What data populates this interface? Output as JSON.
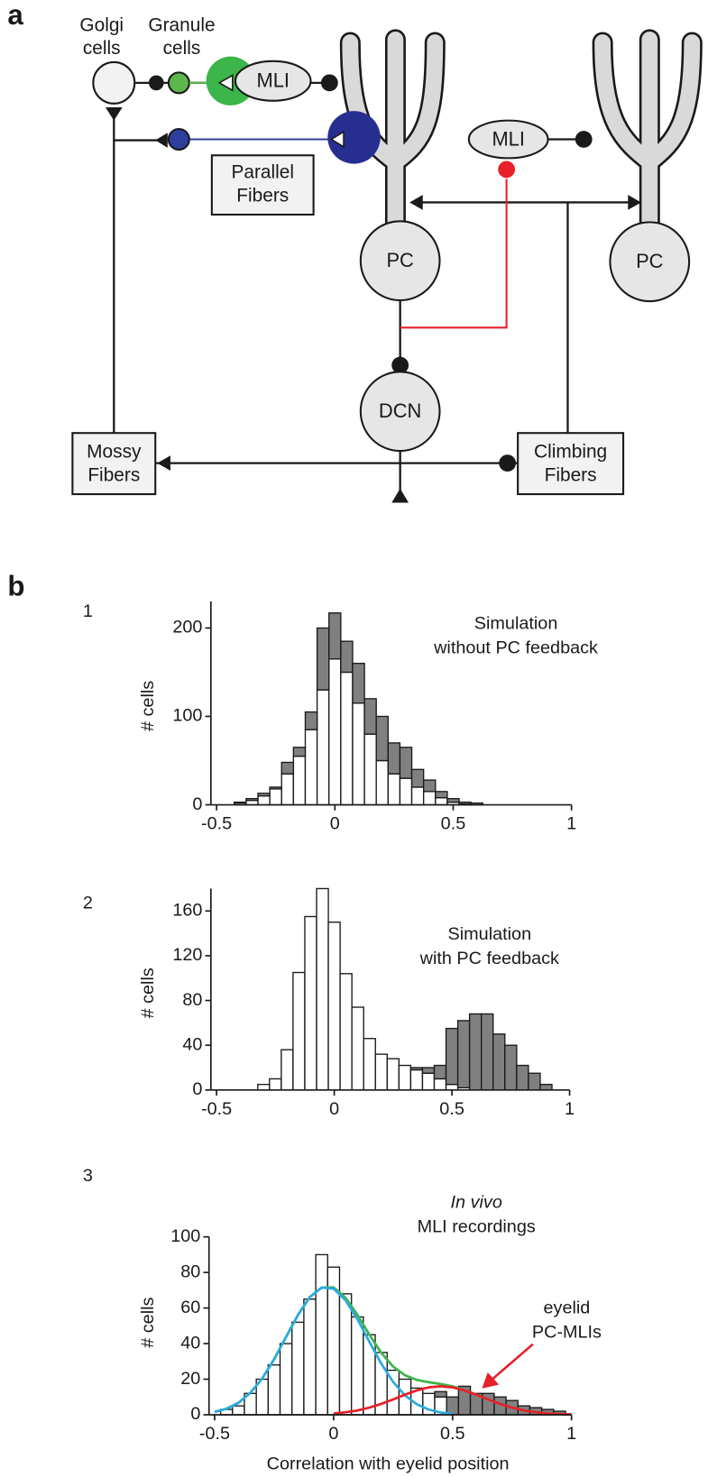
{
  "figure": {
    "panel_a": "a",
    "panel_b": "b"
  },
  "diagram": {
    "labels": {
      "golgi": [
        "Golgi",
        "cells"
      ],
      "granule": [
        "Granule",
        "cells"
      ],
      "mli_1": "MLI",
      "mli_2": "MLI",
      "parallel": [
        "Parallel",
        "Fibers"
      ],
      "pc_1": "PC",
      "pc_2": "PC",
      "dcn": "DCN",
      "mossy": [
        "Mossy",
        "Fibers"
      ],
      "climbing": [
        "Climbing",
        "Fibers"
      ]
    }
  },
  "chart_data": [
    {
      "type": "histogram",
      "panel": "1",
      "ylabel": "# cells",
      "annotation": [
        "Simulation",
        "without PC feedback"
      ],
      "xlim": [
        -0.5,
        1
      ],
      "ylim": [
        0,
        230
      ],
      "xticks": [
        -0.5,
        0,
        0.5,
        1
      ],
      "yticks": [
        0,
        100,
        200
      ],
      "bins": [
        -0.425,
        -0.375,
        -0.325,
        -0.275,
        -0.225,
        -0.175,
        -0.125,
        -0.075,
        -0.025,
        0.025,
        0.075,
        0.125,
        0.175,
        0.225,
        0.275,
        0.325,
        0.375,
        0.425,
        0.475,
        0.525,
        0.575,
        0.625
      ],
      "series": [
        {
          "color": "#ffffff",
          "values": [
            2,
            5,
            10,
            18,
            35,
            55,
            85,
            130,
            165,
            150,
            115,
            80,
            50,
            35,
            30,
            20,
            15,
            8,
            3,
            1,
            0
          ]
        },
        {
          "color": "#808080",
          "values": [
            1,
            2,
            3,
            2,
            13,
            10,
            20,
            70,
            52,
            35,
            45,
            40,
            50,
            35,
            35,
            20,
            13,
            7,
            4,
            2,
            2
          ]
        }
      ]
    },
    {
      "type": "histogram",
      "panel": "2",
      "ylabel": "# cells",
      "annotation": [
        "Simulation",
        "with PC feedback"
      ],
      "xlim": [
        -0.5,
        1
      ],
      "ylim": [
        0,
        180
      ],
      "xticks": [
        -0.5,
        0,
        0.5,
        1
      ],
      "yticks": [
        0,
        40,
        80,
        120,
        160
      ],
      "bins": [
        -0.325,
        -0.275,
        -0.225,
        -0.175,
        -0.125,
        -0.075,
        -0.025,
        0.025,
        0.075,
        0.125,
        0.175,
        0.225,
        0.275,
        0.325,
        0.375,
        0.425,
        0.475,
        0.525,
        0.575,
        0.625,
        0.675,
        0.725,
        0.775,
        0.825,
        0.875,
        0.925
      ],
      "series": [
        {
          "color": "#ffffff",
          "values": [
            5,
            10,
            36,
            105,
            155,
            180,
            150,
            104,
            74,
            46,
            32,
            28,
            22,
            18,
            15,
            10,
            5,
            2,
            0,
            0,
            0,
            0,
            0,
            0,
            0
          ]
        },
        {
          "color": "#808080",
          "values": [
            0,
            0,
            0,
            0,
            0,
            0,
            0,
            0,
            0,
            0,
            0,
            0,
            0,
            2,
            5,
            12,
            50,
            60,
            68,
            68,
            50,
            40,
            22,
            15,
            5
          ]
        }
      ]
    },
    {
      "type": "histogram",
      "panel": "3",
      "ylabel": "# cells",
      "xlabel": "Correlation with eyelid position",
      "annotation": [
        "In vivo",
        "MLI recordings"
      ],
      "callout": [
        "eyelid",
        "PC-MLIs"
      ],
      "xlim": [
        -0.5,
        1
      ],
      "ylim": [
        0,
        100
      ],
      "xticks": [
        -0.5,
        0,
        0.5,
        1
      ],
      "yticks": [
        0,
        20,
        40,
        60,
        80,
        100
      ],
      "bins": [
        -0.475,
        -0.425,
        -0.375,
        -0.325,
        -0.275,
        -0.225,
        -0.175,
        -0.125,
        -0.075,
        -0.025,
        0.025,
        0.075,
        0.125,
        0.175,
        0.225,
        0.275,
        0.325,
        0.375,
        0.425,
        0.475,
        0.525,
        0.575,
        0.625,
        0.675,
        0.725,
        0.775,
        0.825,
        0.875,
        0.925,
        0.975
      ],
      "series": [
        {
          "color": "#ffffff",
          "values": [
            3,
            5,
            12,
            20,
            28,
            40,
            52,
            65,
            90,
            83,
            68,
            55,
            45,
            35,
            25,
            20,
            15,
            12,
            10,
            0,
            0,
            0,
            0,
            0,
            0,
            0,
            0,
            0,
            0
          ]
        },
        {
          "color": "#808080",
          "values": [
            0,
            0,
            0,
            0,
            0,
            0,
            0,
            0,
            0,
            0,
            0,
            0,
            0,
            0,
            0,
            0,
            0,
            0,
            3,
            10,
            16,
            12,
            12,
            10,
            8,
            5,
            4,
            3,
            2
          ]
        }
      ],
      "curves": [
        {
          "color": "#3db54a",
          "x": [
            -0.5,
            -0.45,
            -0.4,
            -0.35,
            -0.3,
            -0.25,
            -0.2,
            -0.15,
            -0.1,
            -0.05,
            0,
            0.05,
            0.1,
            0.15,
            0.2,
            0.25,
            0.3,
            0.35,
            0.4,
            0.45,
            0.5,
            0.55,
            0.6,
            0.65,
            0.7,
            0.75,
            0.8,
            0.85,
            0.9,
            0.95,
            1
          ],
          "values": [
            1.6,
            3.4,
            6.7,
            12.3,
            20.4,
            31.2,
            43.7,
            56.1,
            66.2,
            71.5,
            71.6,
            65.8,
            56.2,
            45.1,
            34.9,
            27.1,
            22.2,
            19.6,
            18.3,
            17.3,
            16.0,
            13.9,
            11.3,
            8.6,
            6.1,
            4.0,
            2.4,
            1.4,
            0.7,
            0.4,
            0.2
          ]
        },
        {
          "color": "#29abe2",
          "x": [
            -0.5,
            -0.45,
            -0.4,
            -0.35,
            -0.3,
            -0.25,
            -0.2,
            -0.15,
            -0.1,
            -0.05,
            0,
            0.05,
            0.1,
            0.15,
            0.2,
            0.25,
            0.3,
            0.35,
            0.4,
            0.45,
            0.5
          ],
          "values": [
            1.6,
            3.4,
            6.7,
            12.3,
            20.4,
            31.2,
            43.7,
            56.1,
            66.2,
            71.5,
            70.9,
            64.4,
            53.8,
            41.1,
            28.8,
            18.5,
            10.9,
            5.9,
            2.9,
            1.3,
            0.6
          ]
        },
        {
          "color": "#e8202a",
          "x": [
            0,
            0.05,
            0.1,
            0.15,
            0.2,
            0.25,
            0.3,
            0.35,
            0.4,
            0.45,
            0.5,
            0.55,
            0.6,
            0.65,
            0.7,
            0.75,
            0.8,
            0.85,
            0.9,
            0.95,
            1
          ],
          "values": [
            0.7,
            1.4,
            2.4,
            4.0,
            6.1,
            8.6,
            11.3,
            13.7,
            15.4,
            16,
            15.4,
            13.7,
            11.3,
            8.6,
            6.1,
            4.0,
            2.4,
            1.4,
            0.7,
            0.4,
            0.2
          ]
        }
      ]
    }
  ]
}
